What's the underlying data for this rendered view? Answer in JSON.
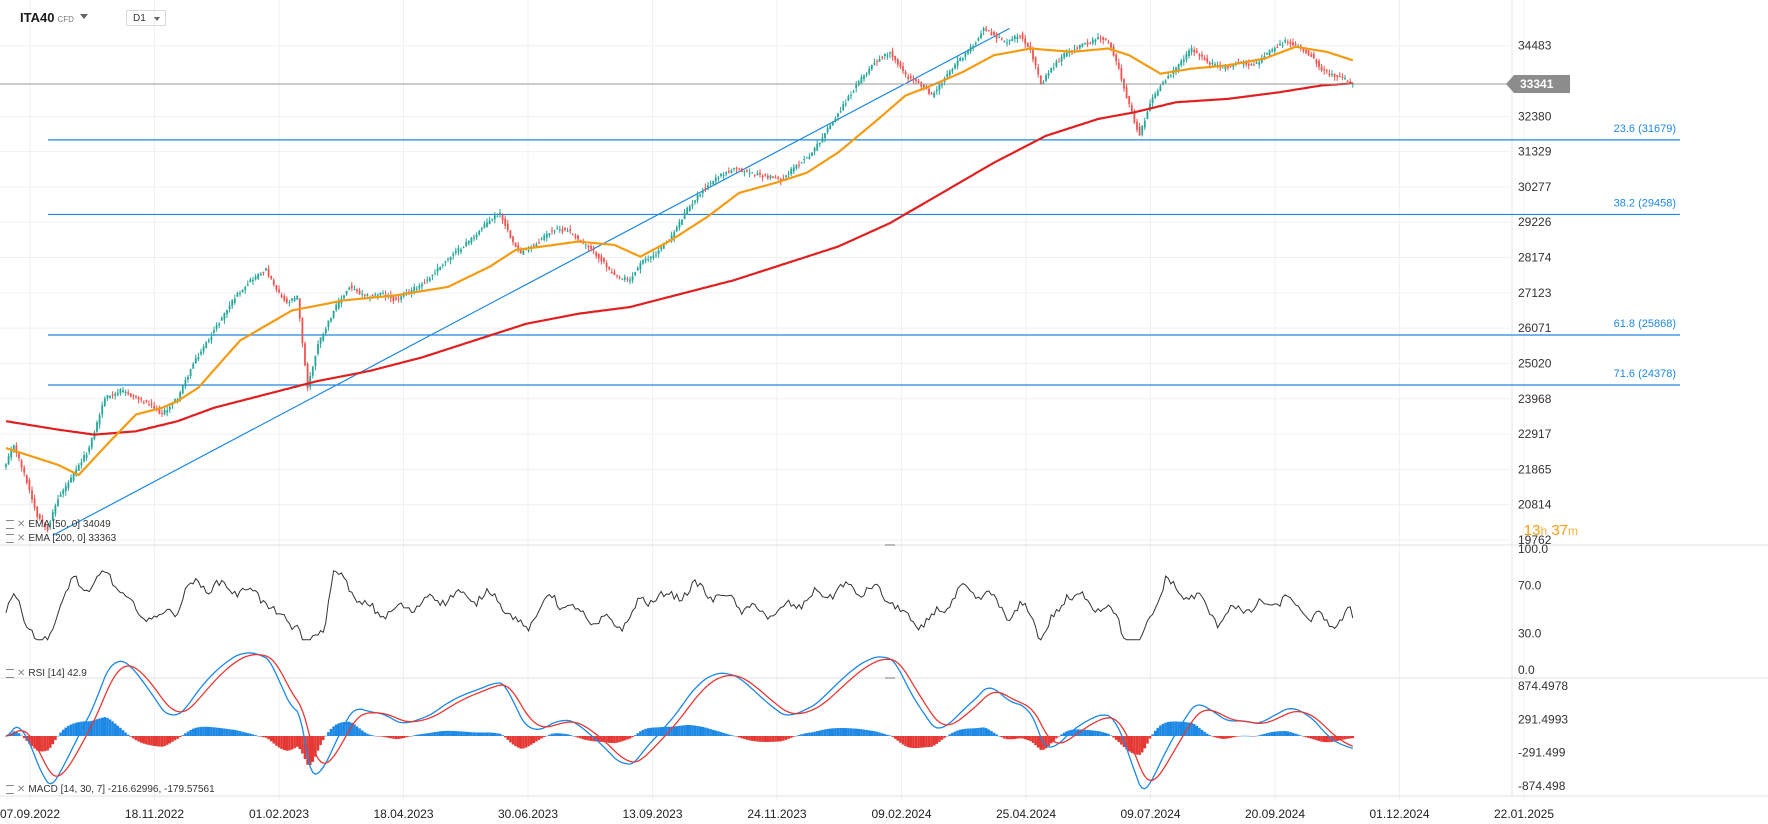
{
  "header": {
    "symbol": "ITA40",
    "symbol_type": "CFD",
    "timeframe": "D1"
  },
  "timer": {
    "hours": "13",
    "h": "h",
    "minutes": "37",
    "m": "m"
  },
  "colors": {
    "up": "#26a69a",
    "down": "#ef5350",
    "ema50": "#f39c12",
    "ema200": "#e02020",
    "fib": "#1e88e5",
    "rsi": "#333333",
    "macd": "#1e88e5",
    "signal": "#e53935",
    "price_label_bg": "#8c8c8c"
  },
  "legends": {
    "ema50": "EMA [50, 0] 34049",
    "ema200": "EMA [200, 0] 33363",
    "rsi": "RSI [14] 42.9",
    "macd": "MACD [14, 30, 7] -216.62996, -179.57561"
  },
  "chart_data": [
    {
      "type": "candlestick",
      "name": "ITA40",
      "y_ticks": [
        34483,
        33341,
        32380,
        31329,
        30277,
        29226,
        28174,
        27123,
        26071,
        25020,
        23968,
        22917,
        21865,
        20814,
        19762
      ],
      "y_tick_labels": [
        "34483",
        "",
        "32380",
        "31329",
        "30277",
        "29226",
        "28174",
        "27123",
        "26071",
        "25020",
        "23968",
        "22917",
        "21865",
        "20814",
        "19762"
      ],
      "ylim": [
        19762,
        35100
      ],
      "x_labels": [
        "07.09.2022",
        "18.11.2022",
        "01.02.2023",
        "18.04.2023",
        "30.06.2023",
        "13.09.2023",
        "24.11.2023",
        "09.02.2024",
        "25.04.2024",
        "09.07.2024",
        "20.09.2024",
        "01.12.2024",
        "22.01.2025"
      ],
      "last_price": 33341,
      "last_price_label": "33341",
      "close_anchors": [
        [
          0,
          22000
        ],
        [
          3,
          22600
        ],
        [
          8,
          21500
        ],
        [
          12,
          20500
        ],
        [
          16,
          20100
        ],
        [
          20,
          21000
        ],
        [
          26,
          21700
        ],
        [
          32,
          22500
        ],
        [
          38,
          24000
        ],
        [
          44,
          24200
        ],
        [
          50,
          24000
        ],
        [
          55,
          23800
        ],
        [
          60,
          23500
        ],
        [
          66,
          24000
        ],
        [
          72,
          25000
        ],
        [
          80,
          26000
        ],
        [
          88,
          27000
        ],
        [
          94,
          27500
        ],
        [
          100,
          27800
        ],
        [
          104,
          27200
        ],
        [
          108,
          26800
        ],
        [
          112,
          27000
        ],
        [
          116,
          24300
        ],
        [
          120,
          25600
        ],
        [
          126,
          26600
        ],
        [
          132,
          27300
        ],
        [
          138,
          27000
        ],
        [
          144,
          27100
        ],
        [
          150,
          26900
        ],
        [
          156,
          27200
        ],
        [
          162,
          27500
        ],
        [
          168,
          28000
        ],
        [
          174,
          28400
        ],
        [
          180,
          28800
        ],
        [
          186,
          29300
        ],
        [
          190,
          29500
        ],
        [
          194,
          28800
        ],
        [
          198,
          28300
        ],
        [
          204,
          28600
        ],
        [
          210,
          29000
        ],
        [
          216,
          29000
        ],
        [
          222,
          28600
        ],
        [
          228,
          28200
        ],
        [
          234,
          27600
        ],
        [
          240,
          27500
        ],
        [
          244,
          28000
        ],
        [
          250,
          28300
        ],
        [
          256,
          28800
        ],
        [
          262,
          29600
        ],
        [
          268,
          30200
        ],
        [
          274,
          30600
        ],
        [
          280,
          30800
        ],
        [
          286,
          30700
        ],
        [
          292,
          30600
        ],
        [
          298,
          30500
        ],
        [
          304,
          30900
        ],
        [
          310,
          31300
        ],
        [
          316,
          32000
        ],
        [
          322,
          32700
        ],
        [
          328,
          33400
        ],
        [
          334,
          34000
        ],
        [
          340,
          34300
        ],
        [
          346,
          33600
        ],
        [
          352,
          33300
        ],
        [
          356,
          33000
        ],
        [
          360,
          33400
        ],
        [
          366,
          34000
        ],
        [
          372,
          34500
        ],
        [
          376,
          35000
        ],
        [
          380,
          34800
        ],
        [
          384,
          34600
        ],
        [
          390,
          34800
        ],
        [
          394,
          34400
        ],
        [
          398,
          33300
        ],
        [
          402,
          33800
        ],
        [
          408,
          34300
        ],
        [
          414,
          34500
        ],
        [
          420,
          34700
        ],
        [
          424,
          34600
        ],
        [
          428,
          33800
        ],
        [
          432,
          32700
        ],
        [
          436,
          31800
        ],
        [
          440,
          32800
        ],
        [
          444,
          33300
        ],
        [
          450,
          33800
        ],
        [
          456,
          34400
        ],
        [
          462,
          34000
        ],
        [
          468,
          33800
        ],
        [
          474,
          34000
        ],
        [
          480,
          33900
        ],
        [
          486,
          34300
        ],
        [
          492,
          34600
        ],
        [
          496,
          34500
        ],
        [
          502,
          34200
        ],
        [
          506,
          33800
        ],
        [
          510,
          33600
        ],
        [
          514,
          33500
        ],
        [
          518,
          33341
        ]
      ],
      "ema_anchors": {
        "ema50": [
          [
            0,
            22500
          ],
          [
            20,
            22000
          ],
          [
            28,
            21700
          ],
          [
            40,
            22700
          ],
          [
            50,
            23500
          ],
          [
            60,
            23700
          ],
          [
            66,
            23900
          ],
          [
            74,
            24300
          ],
          [
            90,
            25700
          ],
          [
            110,
            26600
          ],
          [
            130,
            26900
          ],
          [
            150,
            27050
          ],
          [
            170,
            27300
          ],
          [
            186,
            27900
          ],
          [
            196,
            28400
          ],
          [
            206,
            28500
          ],
          [
            220,
            28650
          ],
          [
            234,
            28550
          ],
          [
            244,
            28200
          ],
          [
            256,
            28700
          ],
          [
            270,
            29400
          ],
          [
            282,
            30100
          ],
          [
            296,
            30400
          ],
          [
            308,
            30700
          ],
          [
            320,
            31300
          ],
          [
            334,
            32200
          ],
          [
            346,
            33000
          ],
          [
            356,
            33300
          ],
          [
            368,
            33700
          ],
          [
            380,
            34200
          ],
          [
            394,
            34400
          ],
          [
            410,
            34300
          ],
          [
            424,
            34400
          ],
          [
            432,
            34200
          ],
          [
            444,
            33650
          ],
          [
            456,
            33800
          ],
          [
            470,
            33900
          ],
          [
            484,
            34100
          ],
          [
            496,
            34450
          ],
          [
            508,
            34300
          ],
          [
            518,
            34049
          ]
        ],
        "ema200": [
          [
            0,
            23300
          ],
          [
            20,
            23050
          ],
          [
            34,
            22900
          ],
          [
            50,
            23000
          ],
          [
            66,
            23300
          ],
          [
            80,
            23700
          ],
          [
            100,
            24100
          ],
          [
            120,
            24500
          ],
          [
            140,
            24800
          ],
          [
            160,
            25200
          ],
          [
            180,
            25700
          ],
          [
            200,
            26200
          ],
          [
            220,
            26500
          ],
          [
            240,
            26700
          ],
          [
            260,
            27100
          ],
          [
            280,
            27500
          ],
          [
            300,
            28000
          ],
          [
            320,
            28500
          ],
          [
            340,
            29200
          ],
          [
            360,
            30100
          ],
          [
            380,
            31000
          ],
          [
            400,
            31800
          ],
          [
            420,
            32300
          ],
          [
            434,
            32500
          ],
          [
            450,
            32800
          ],
          [
            470,
            32900
          ],
          [
            490,
            33100
          ],
          [
            506,
            33300
          ],
          [
            518,
            33363
          ]
        ]
      },
      "trendline": {
        "from": [
          18,
          19900
        ],
        "to": [
          386,
          35000
        ]
      },
      "fibonacci": [
        {
          "level": "23.6",
          "value": 31679,
          "label": "23.6 (31679)"
        },
        {
          "level": "38.2",
          "value": 29458,
          "label": "38.2 (29458)"
        },
        {
          "level": "61.8",
          "value": 25868,
          "label": "61.8 (25868)"
        },
        {
          "level": "71.6",
          "value": 24378,
          "label": "71.6 (24378)"
        }
      ]
    },
    {
      "type": "line",
      "name": "RSI [14]",
      "y_ticks": [
        100.0,
        70.0,
        30.0,
        0.0
      ],
      "y_tick_labels": [
        "100.0",
        "70.0",
        "30.0",
        "0.0"
      ],
      "ylim": [
        0,
        100
      ],
      "last_value": 42.9
    },
    {
      "type": "bar",
      "name": "MACD [14, 30, 7]",
      "y_ticks": [
        874.4978,
        291.4993,
        -291.499,
        -874.498
      ],
      "y_tick_labels": [
        "874.4978",
        "291.4993",
        "-291.499",
        "-874.498"
      ],
      "ylim": [
        -874.498,
        874.4978
      ],
      "macd_last": -216.62996,
      "signal_last": -179.57561
    }
  ]
}
